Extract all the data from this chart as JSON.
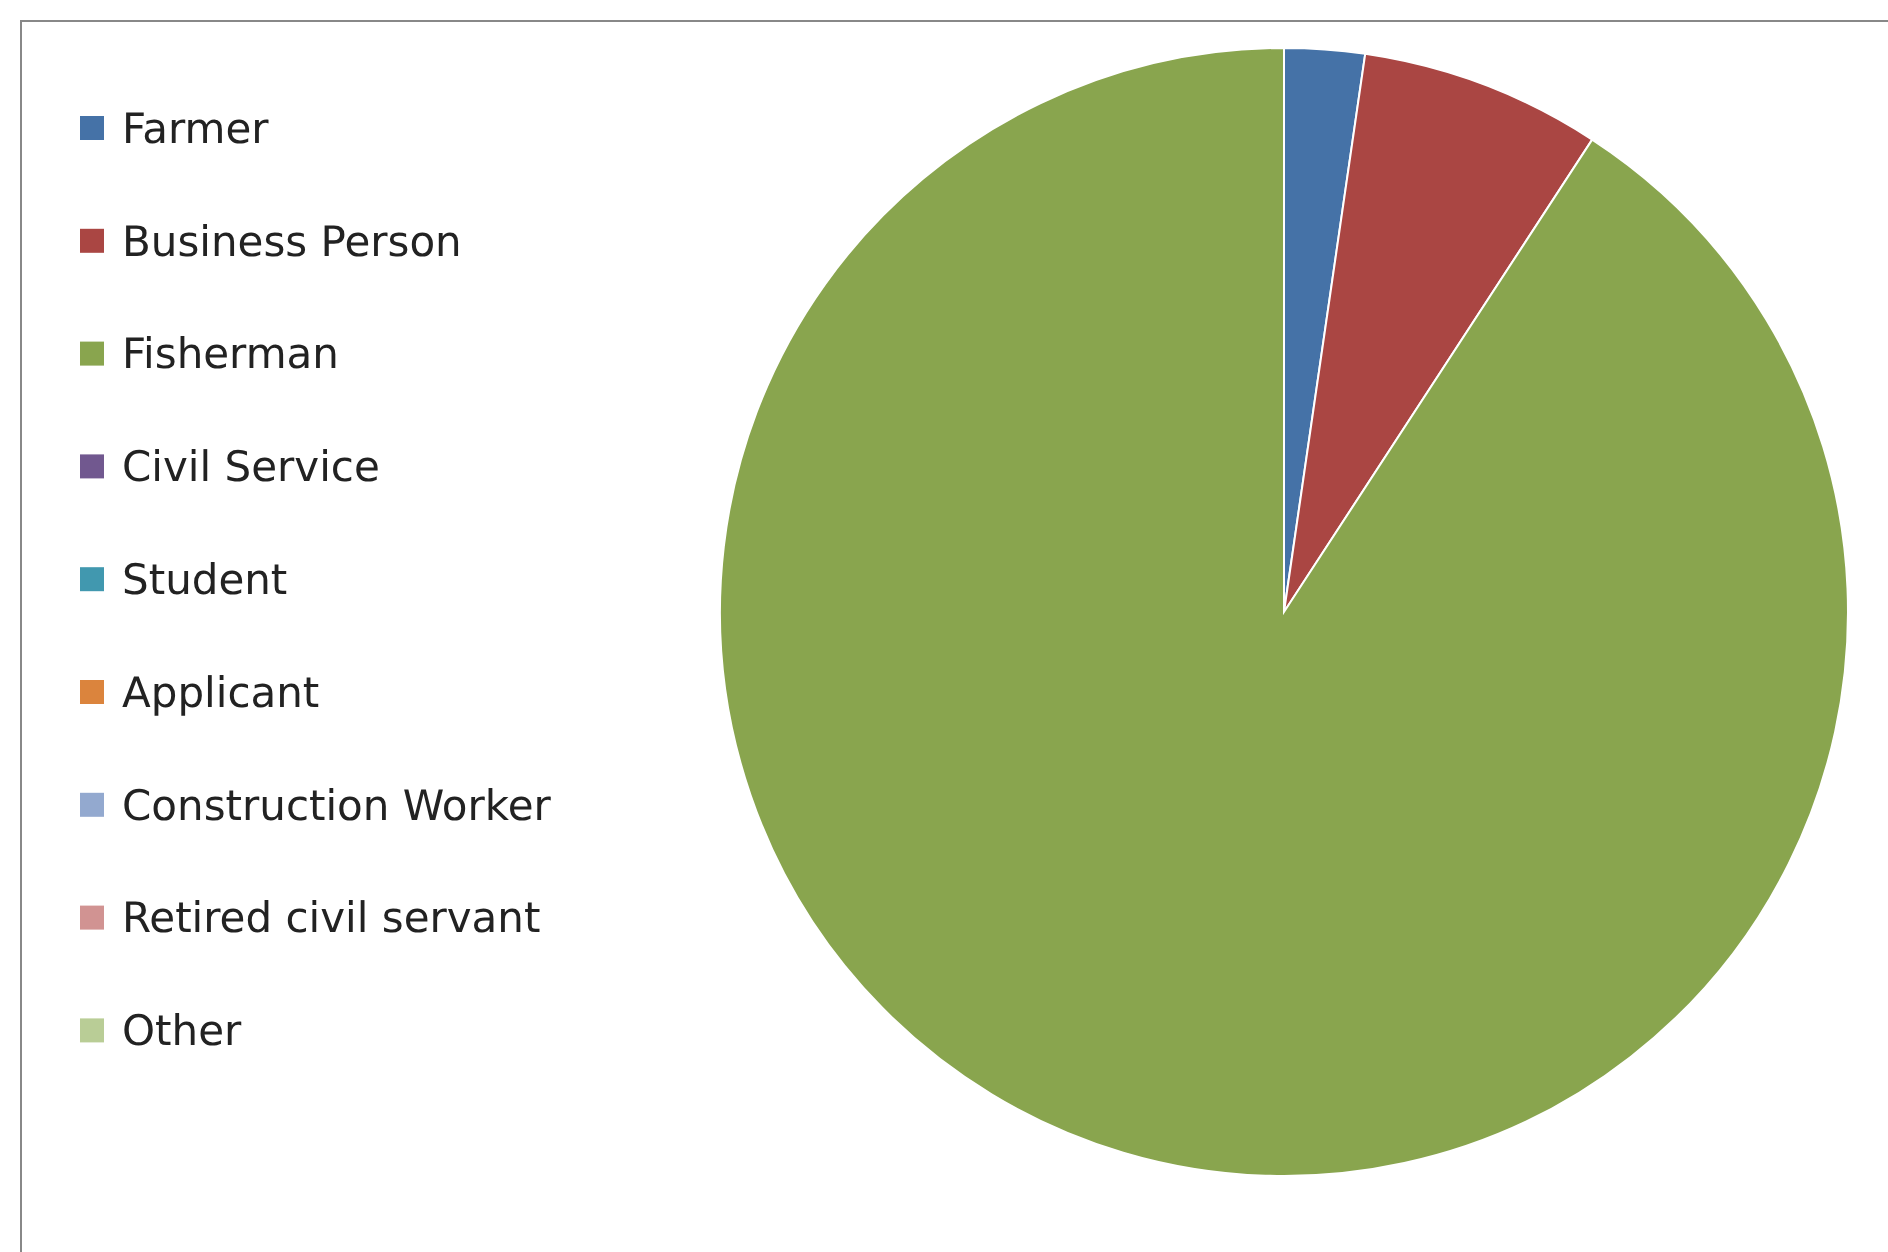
{
  "chart_data": {
    "type": "pie",
    "categories": [
      "Farmer",
      "Business Person",
      "Fisherman",
      "Civil Service",
      "Student",
      "Applicant",
      "Construction Worker",
      "Retired civil servant",
      "Other"
    ],
    "values": [
      2.3,
      6.9,
      90.8,
      0,
      0,
      0,
      0,
      0,
      0
    ],
    "colors": [
      "#4572a7",
      "#aa4643",
      "#89a54e",
      "#71588f",
      "#4198af",
      "#db843d",
      "#93a9cf",
      "#d19392",
      "#b9cd96"
    ],
    "legend": "left"
  }
}
